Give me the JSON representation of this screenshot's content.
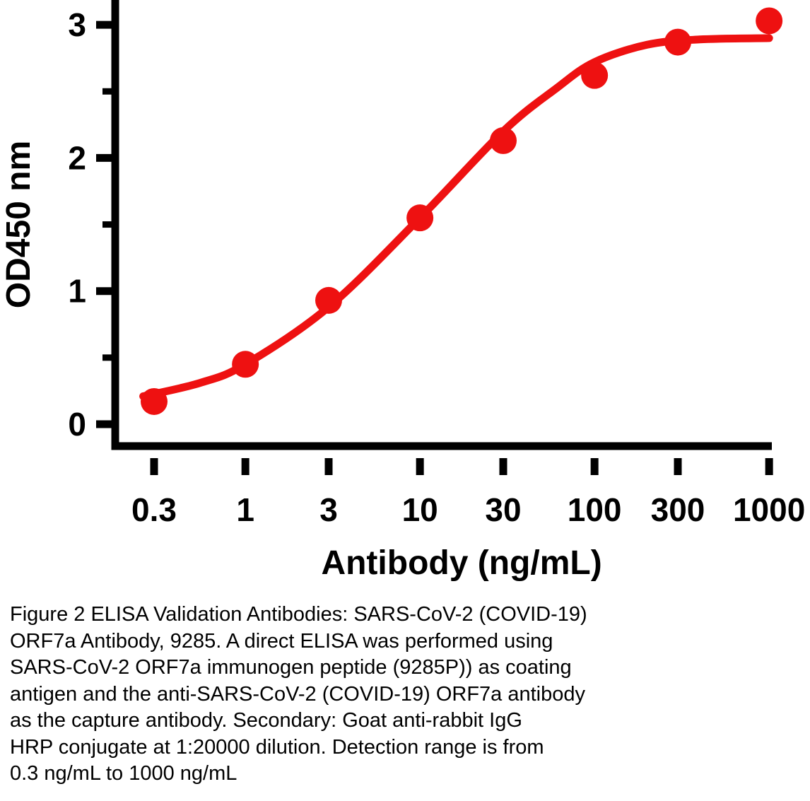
{
  "chart_data": {
    "type": "scatter",
    "x_scale": "log",
    "title": "",
    "xlabel": "Antibody (ng/mL)",
    "ylabel": "OD450 nm",
    "x_ticks": [
      0.3,
      1,
      3,
      10,
      30,
      100,
      300,
      1000
    ],
    "x_tick_labels": [
      "0.3",
      "1",
      "3",
      "10",
      "30",
      "100",
      "300",
      "1000"
    ],
    "y_ticks": [
      0,
      1,
      2,
      3
    ],
    "y_tick_labels": [
      "0",
      "1",
      "2",
      "3"
    ],
    "y_minor_ticks": [
      0.5,
      1.5,
      2.5
    ],
    "xlim": [
      0.25,
      1050
    ],
    "ylim": [
      0,
      3.2
    ],
    "grid": false,
    "legend": "none",
    "series_color": "#ee1111",
    "axis_color": "#000000",
    "points": {
      "x": [
        0.3,
        1,
        3,
        10,
        30,
        100,
        300,
        1000
      ],
      "y": [
        0.17,
        0.45,
        0.93,
        1.55,
        2.13,
        2.62,
        2.87,
        3.03
      ]
    },
    "fit_curve": [
      [
        0.26,
        0.21
      ],
      [
        0.55,
        0.31
      ],
      [
        1,
        0.45
      ],
      [
        3,
        0.88
      ],
      [
        10,
        1.55
      ],
      [
        30,
        2.2
      ],
      [
        60,
        2.52
      ],
      [
        100,
        2.72
      ],
      [
        200,
        2.85
      ],
      [
        400,
        2.89
      ],
      [
        1000,
        2.9
      ]
    ]
  },
  "caption": {
    "lines": [
      "Figure 2 ELISA Validation Antibodies: SARS-CoV-2 (COVID-19)",
      "ORF7a Antibody, 9285. A direct ELISA was performed using",
      "SARS-CoV-2 ORF7a immunogen peptide (9285P)) as coating",
      "antigen and the anti-SARS-CoV-2 (COVID-19) ORF7a antibody",
      "as the capture antibody. Secondary: Goat anti-rabbit IgG",
      "HRP conjugate at 1:20000 dilution. Detection range is from",
      "0.3 ng/mL to 1000 ng/mL"
    ]
  }
}
